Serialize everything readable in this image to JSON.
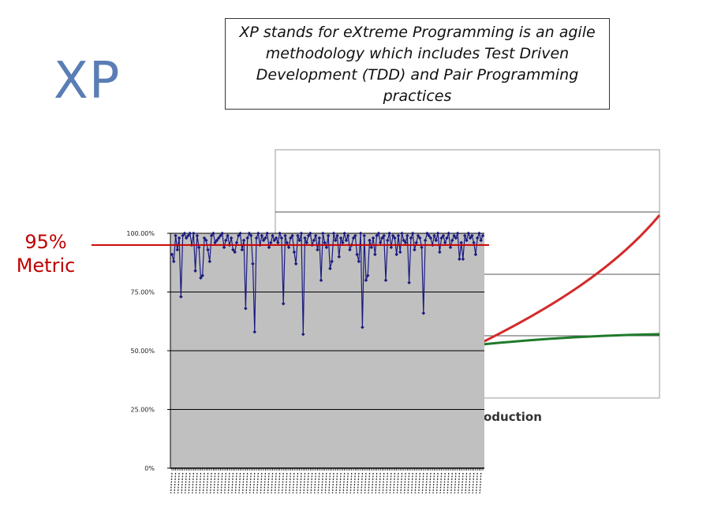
{
  "slide": {
    "title": "XP",
    "callout": "XP stands for eXtreme Programming is an agile methodology which includes Test Driven Development (TDD) and Pair Programming practices",
    "metric_label_line1": "95%",
    "metric_label_line2": "Metric"
  },
  "colors": {
    "title": "#5a7db5",
    "metric": "#cc0000",
    "series": "#1a1a80",
    "plot_area": "#c0c0c0",
    "bg_red": "#d42a2a",
    "bg_green": "#1f7a2a"
  },
  "chart_data": [
    {
      "type": "line",
      "partially_hidden": true,
      "annotation": "oduction",
      "series": [
        {
          "color": "#d42a2a",
          "shape": "convex rising curve"
        },
        {
          "color": "#1f7a2a",
          "shape": "flattening curve"
        }
      ],
      "grid": true
    },
    {
      "type": "line",
      "ylim": [
        0,
        1
      ],
      "y_tick_labels": [
        "0%",
        "25.00%",
        "50.00%",
        "75.00%",
        "100.00%"
      ],
      "grid": true,
      "threshold": 0.95,
      "series": [
        {
          "color": "#1a1a80",
          "values": [
            0.91,
            0.88,
            0.99,
            0.93,
            0.98,
            0.73,
            0.99,
            1.0,
            0.98,
            0.99,
            1.0,
            0.95,
            1.0,
            0.84,
            0.99,
            0.94,
            0.81,
            0.82,
            0.98,
            0.97,
            0.93,
            0.88,
            0.99,
            1.0,
            0.96,
            0.97,
            0.98,
            0.99,
            1.0,
            0.94,
            0.97,
            0.99,
            0.95,
            0.98,
            0.93,
            0.92,
            0.96,
            0.99,
            1.0,
            0.93,
            0.97,
            0.68,
            0.98,
            1.0,
            0.99,
            0.87,
            0.58,
            0.98,
            1.0,
            0.95,
            0.99,
            0.97,
            0.98,
            1.0,
            0.94,
            0.96,
            0.99,
            0.97,
            0.98,
            0.96,
            1.0,
            0.98,
            0.7,
            0.99,
            0.96,
            0.94,
            0.98,
            0.99,
            0.92,
            0.87,
            0.99,
            0.97,
            1.0,
            0.57,
            0.98,
            0.96,
            0.99,
            1.0,
            0.95,
            0.97,
            0.99,
            0.93,
            0.98,
            0.8,
            1.0,
            0.96,
            0.94,
            0.99,
            0.85,
            0.88,
            1.0,
            0.97,
            0.99,
            0.9,
            0.98,
            0.96,
            1.0,
            0.97,
            0.99,
            0.93,
            0.95,
            0.98,
            0.99,
            0.91,
            0.88,
            1.0,
            0.6,
            0.99,
            0.8,
            0.82,
            0.97,
            0.94,
            0.98,
            0.91,
            0.99,
            1.0,
            0.96,
            0.98,
            0.99,
            0.8,
            0.97,
            1.0,
            0.94,
            0.99,
            0.98,
            0.91,
            0.99,
            0.92,
            1.0,
            0.97,
            0.96,
            0.99,
            0.79,
            0.98,
            1.0,
            0.93,
            0.96,
            0.99,
            0.98,
            0.94,
            0.66,
            0.97,
            1.0,
            0.99,
            0.98,
            0.95,
            0.99,
            0.97,
            1.0,
            0.92,
            0.98,
            0.99,
            0.96,
            0.98,
            1.0,
            0.94,
            0.97,
            0.99,
            0.98,
            1.0,
            0.89,
            0.96,
            0.89,
            0.99,
            0.97,
            1.0,
            0.98,
            0.99,
            0.96,
            0.91,
            0.98,
            1.0,
            0.97,
            0.99
          ]
        }
      ]
    }
  ]
}
